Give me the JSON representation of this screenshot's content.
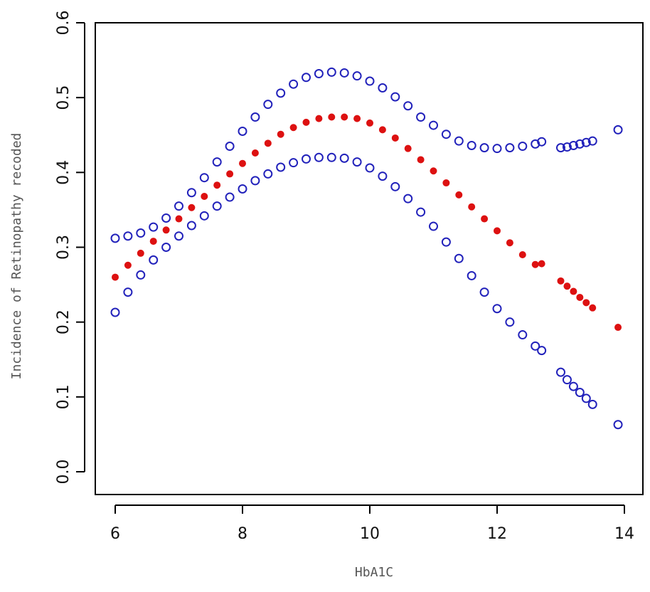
{
  "chart_data": {
    "type": "scatter",
    "title": "",
    "xlabel": "HbA1C",
    "ylabel": "Incidence of Retinopathy recoded",
    "xlim": [
      6,
      14
    ],
    "ylim": [
      0,
      0.6
    ],
    "xticks": [
      "6",
      "8",
      "10",
      "12",
      "14"
    ],
    "yticks": [
      "0.0",
      "0.1",
      "0.2",
      "0.3",
      "0.4",
      "0.5",
      "0.6"
    ],
    "grid": false,
    "legend": "none",
    "series": [
      {
        "color": "#2222bb",
        "marker": "open-circle",
        "x": [
          6.0,
          6.2,
          6.4,
          6.6,
          6.8,
          7.0,
          7.2,
          7.4,
          7.6,
          7.8,
          8.0,
          8.2,
          8.4,
          8.6,
          8.8,
          9.0,
          9.2,
          9.4,
          9.6,
          9.8,
          10.0,
          10.2,
          10.4,
          10.6,
          10.8,
          11.0,
          11.2,
          11.4,
          11.6,
          11.8,
          12.0,
          12.2,
          12.4,
          12.6,
          12.7,
          13.0,
          13.1,
          13.2,
          13.3,
          13.4,
          13.5,
          13.9
        ],
        "y": [
          0.312,
          0.315,
          0.319,
          0.327,
          0.339,
          0.355,
          0.373,
          0.393,
          0.414,
          0.435,
          0.455,
          0.474,
          0.491,
          0.506,
          0.518,
          0.527,
          0.532,
          0.534,
          0.533,
          0.529,
          0.522,
          0.513,
          0.501,
          0.489,
          0.474,
          0.463,
          0.451,
          0.442,
          0.436,
          0.433,
          0.432,
          0.433,
          0.435,
          0.438,
          0.441,
          0.433,
          0.434,
          0.436,
          0.438,
          0.44,
          0.442,
          0.457
        ]
      },
      {
        "color": "#dd1111",
        "marker": "filled-circle",
        "x": [
          6.0,
          6.2,
          6.4,
          6.6,
          6.8,
          7.0,
          7.2,
          7.4,
          7.6,
          7.8,
          8.0,
          8.2,
          8.4,
          8.6,
          8.8,
          9.0,
          9.2,
          9.4,
          9.6,
          9.8,
          10.0,
          10.2,
          10.4,
          10.6,
          10.8,
          11.0,
          11.2,
          11.4,
          11.6,
          11.8,
          12.0,
          12.2,
          12.4,
          12.6,
          12.7,
          13.0,
          13.1,
          13.2,
          13.3,
          13.4,
          13.5,
          13.9
        ],
        "y": [
          0.26,
          0.276,
          0.292,
          0.308,
          0.323,
          0.338,
          0.353,
          0.368,
          0.383,
          0.398,
          0.412,
          0.426,
          0.439,
          0.451,
          0.46,
          0.467,
          0.472,
          0.474,
          0.474,
          0.472,
          0.466,
          0.457,
          0.446,
          0.432,
          0.417,
          0.402,
          0.386,
          0.37,
          0.354,
          0.338,
          0.322,
          0.306,
          0.29,
          0.277,
          0.278,
          0.255,
          0.248,
          0.241,
          0.233,
          0.226,
          0.219,
          0.193
        ]
      },
      {
        "color": "#2222bb",
        "marker": "open-circle",
        "x": [
          6.0,
          6.2,
          6.4,
          6.6,
          6.8,
          7.0,
          7.2,
          7.4,
          7.6,
          7.8,
          8.0,
          8.2,
          8.4,
          8.6,
          8.8,
          9.0,
          9.2,
          9.4,
          9.6,
          9.8,
          10.0,
          10.2,
          10.4,
          10.6,
          10.8,
          11.0,
          11.2,
          11.4,
          11.6,
          11.8,
          12.0,
          12.2,
          12.4,
          12.6,
          12.7,
          13.0,
          13.1,
          13.2,
          13.3,
          13.4,
          13.5,
          13.9
        ],
        "y": [
          0.213,
          0.24,
          0.263,
          0.283,
          0.3,
          0.315,
          0.329,
          0.342,
          0.355,
          0.367,
          0.378,
          0.389,
          0.398,
          0.407,
          0.413,
          0.418,
          0.42,
          0.42,
          0.419,
          0.414,
          0.406,
          0.395,
          0.381,
          0.365,
          0.347,
          0.328,
          0.307,
          0.285,
          0.262,
          0.24,
          0.218,
          0.2,
          0.183,
          0.168,
          0.162,
          0.133,
          0.123,
          0.114,
          0.106,
          0.098,
          0.09,
          0.063
        ]
      }
    ]
  }
}
